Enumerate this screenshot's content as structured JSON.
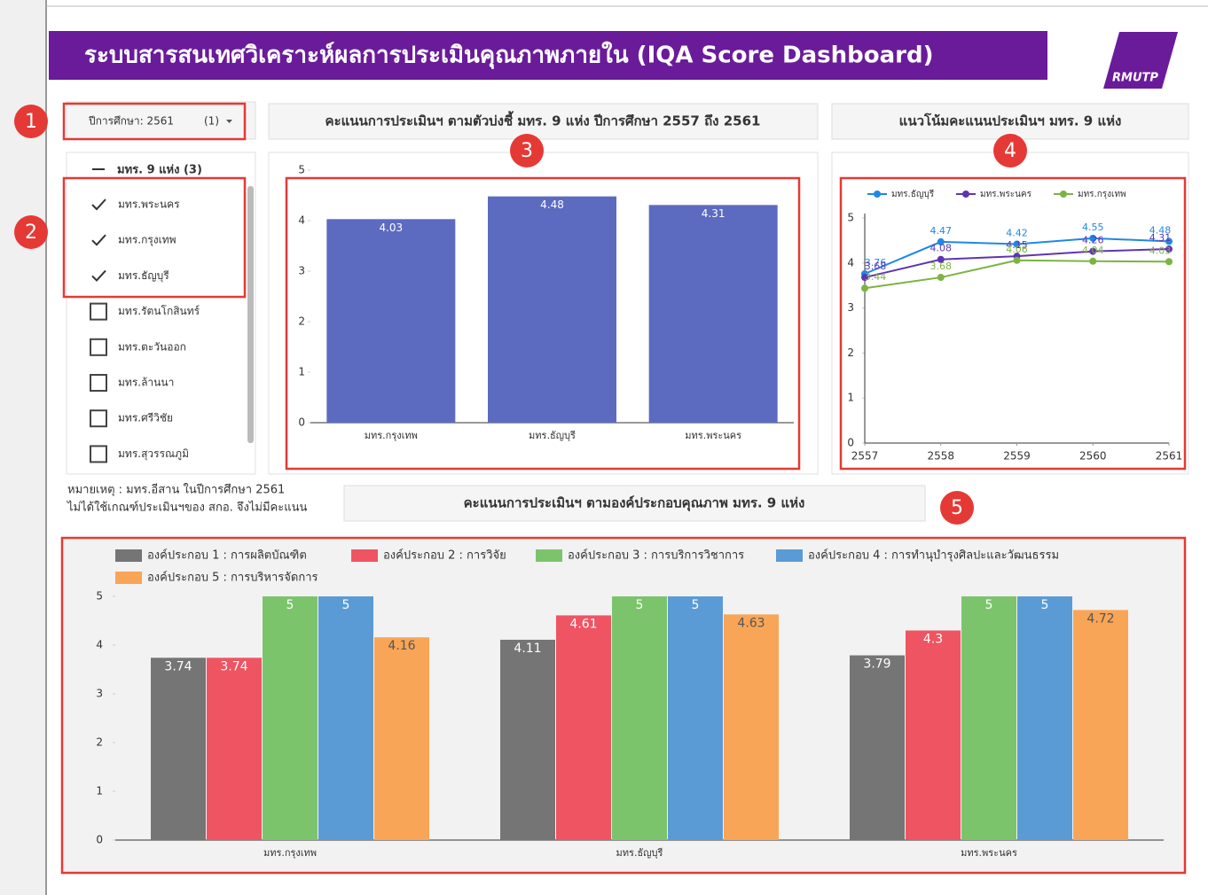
{
  "header": {
    "title": "ระบบสารสนเทศวิเคราะห์ผลการประเมินคุณภาพภายใน (IQA Score Dashboard)",
    "logo": "RMUTP"
  },
  "filter": {
    "label": "ปีการศึกษา: 2561",
    "count": "(1)"
  },
  "checklist": {
    "group": "มทร. 9 แห่ง (3)",
    "items": [
      {
        "label": "มทร.พระนคร",
        "checked": true
      },
      {
        "label": "มทร.กรุงเทพ",
        "checked": true
      },
      {
        "label": "มทร.ธัญบุรี",
        "checked": true
      },
      {
        "label": "มทร.รัตนโกสินทร์",
        "checked": false
      },
      {
        "label": "มทร.ตะวันออก",
        "checked": false
      },
      {
        "label": "มทร.ล้านนา",
        "checked": false
      },
      {
        "label": "มทร.ศรีวิชัย",
        "checked": false
      },
      {
        "label": "มทร.สุวรรณภูมิ",
        "checked": false
      }
    ]
  },
  "note": [
    "หมายเหตุ : มทร.อีสาน ในปีการศึกษา 2561",
    "ไม่ได้ใช้เกณฑ์ประเมินฯของ สกอ. จึงไม่มีคะแนน"
  ],
  "callouts": [
    "1",
    "2",
    "3",
    "4",
    "5"
  ],
  "chart_data": [
    {
      "type": "bar",
      "title": "คะแนนการประเมินฯ ตามตัวบ่งชี้ มทร. 9 แห่ง ปีการศึกษา 2557 ถึง 2561",
      "categories": [
        "มทร.กรุงเทพ",
        "มทร.ธัญบุรี",
        "มทร.พระนคร"
      ],
      "values": [
        4.03,
        4.48,
        4.31
      ],
      "color": "#5c6bc0",
      "ylim": [
        0,
        5
      ],
      "yticks": [
        0,
        1,
        2,
        3,
        4,
        5
      ]
    },
    {
      "type": "line",
      "title": "แนวโน้มคะแนนประเมินฯ มทร. 9 แห่ง",
      "x": [
        2557,
        2558,
        2559,
        2560,
        2561
      ],
      "xlim": [
        2557,
        2561
      ],
      "xticks": [
        2557,
        2558,
        2559,
        2560,
        2561
      ],
      "ylim": [
        0,
        5
      ],
      "yticks": [
        0,
        1,
        2,
        3,
        4,
        5
      ],
      "series": [
        {
          "name": "มทร.ธัญบุรี",
          "color": "#1e88e5",
          "values": [
            3.76,
            4.47,
            4.42,
            4.55,
            4.48
          ]
        },
        {
          "name": "มทร.พระนคร",
          "color": "#5e35b1",
          "values": [
            3.68,
            4.08,
            4.15,
            4.26,
            4.31
          ]
        },
        {
          "name": "มทร.กรุงเทพ",
          "color": "#7cb342",
          "values": [
            3.44,
            3.68,
            4.06,
            4.04,
            4.03
          ]
        }
      ]
    },
    {
      "type": "grouped_bar",
      "title": "คะแนนการประเมินฯ ตามองค์ประกอบคุณภาพ มทร. 9 แห่ง",
      "categories": [
        "มทร.กรุงเทพ",
        "มทร.ธัญบุรี",
        "มทร.พระนคร"
      ],
      "ylim": [
        0,
        5
      ],
      "yticks": [
        0,
        1,
        2,
        3,
        4,
        5
      ],
      "series": [
        {
          "name": "องค์ประกอบ 1 : การผลิตบัณฑิต",
          "color": "#757575",
          "values": [
            3.74,
            4.11,
            3.79
          ]
        },
        {
          "name": "องค์ประกอบ 2 : การวิจัย",
          "color": "#ef5462",
          "values": [
            3.74,
            4.61,
            4.3
          ]
        },
        {
          "name": "องค์ประกอบ 3 : การบริการวิชาการ",
          "color": "#7cc46b",
          "values": [
            5,
            5,
            5
          ]
        },
        {
          "name": "องค์ประกอบ 4 : การทำนุบำรุงศิลปะและวัฒนธรรม",
          "color": "#5b9bd5",
          "values": [
            5,
            5,
            5
          ]
        },
        {
          "name": "องค์ประกอบ 5 : การบริหารจัดการ",
          "color": "#f9a557",
          "values": [
            4.16,
            4.63,
            4.72
          ]
        }
      ]
    }
  ]
}
